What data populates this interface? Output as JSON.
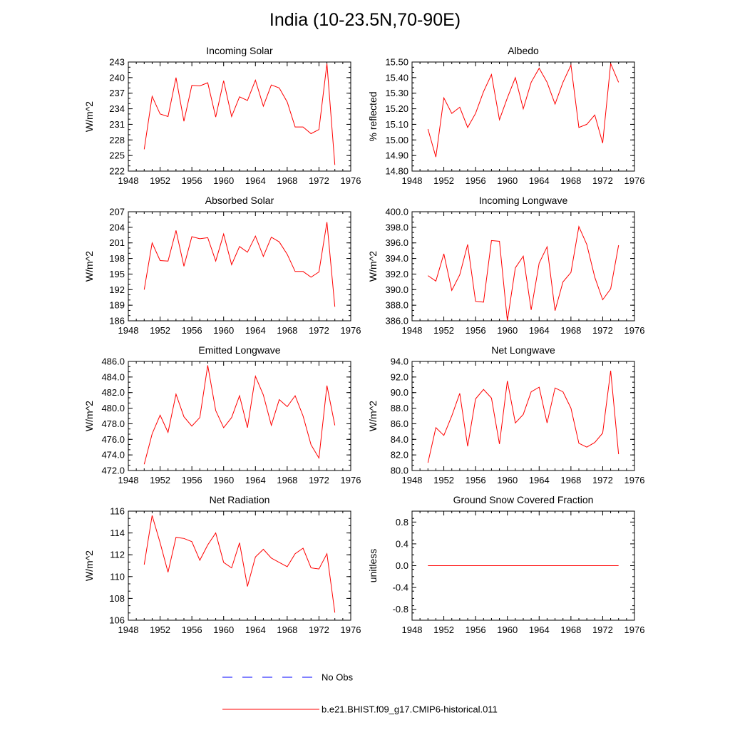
{
  "title": "India (10-23.5N,70-90E)",
  "colors": {
    "model": "#ff0000",
    "obs": "#0000ff",
    "axis": "#000000"
  },
  "legend": {
    "obs_label": "No Obs",
    "model_label": "b.e21.BHIST.f09_g17.CMIP6-historical.011"
  },
  "chart_data": [
    {
      "type": "line",
      "title": "Incoming Solar",
      "ylabel": "W/m^2",
      "xlim": [
        1948,
        1976
      ],
      "ylim": [
        222,
        243
      ],
      "xticks": [
        "1948",
        "1952",
        "1956",
        "1960",
        "1964",
        "1968",
        "1972",
        "1976"
      ],
      "yticks": [
        "222",
        "225",
        "228",
        "231",
        "234",
        "237",
        "240",
        "243"
      ],
      "x": [
        1950,
        1951,
        1952,
        1953,
        1954,
        1955,
        1956,
        1957,
        1958,
        1959,
        1960,
        1961,
        1962,
        1963,
        1964,
        1965,
        1966,
        1967,
        1968,
        1969,
        1970,
        1971,
        1972,
        1973,
        1974
      ],
      "series": [
        {
          "values": [
            226.2,
            236.4,
            233.0,
            232.5,
            240.0,
            231.6,
            238.5,
            238.4,
            239.0,
            232.4,
            239.4,
            232.5,
            236.3,
            235.6,
            239.5,
            234.5,
            238.6,
            238.0,
            235.3,
            230.5,
            230.5,
            229.2,
            230.0,
            242.7,
            223.2
          ]
        }
      ]
    },
    {
      "type": "line",
      "title": "Albedo",
      "ylabel": "% reflected",
      "xlim": [
        1948,
        1976
      ],
      "ylim": [
        14.8,
        15.5
      ],
      "xticks": [
        "1948",
        "1952",
        "1956",
        "1960",
        "1964",
        "1968",
        "1972",
        "1976"
      ],
      "yticks": [
        "14.80",
        "14.90",
        "15.00",
        "15.10",
        "15.20",
        "15.30",
        "15.40",
        "15.50"
      ],
      "x": [
        1950,
        1951,
        1952,
        1953,
        1954,
        1955,
        1956,
        1957,
        1958,
        1959,
        1960,
        1961,
        1962,
        1963,
        1964,
        1965,
        1966,
        1967,
        1968,
        1969,
        1970,
        1971,
        1972,
        1973,
        1974
      ],
      "series": [
        {
          "values": [
            15.07,
            14.89,
            15.27,
            15.17,
            15.21,
            15.08,
            15.17,
            15.31,
            15.42,
            15.13,
            15.27,
            15.4,
            15.2,
            15.37,
            15.46,
            15.37,
            15.23,
            15.37,
            15.48,
            15.08,
            15.1,
            15.16,
            14.98,
            15.49,
            15.37
          ]
        }
      ]
    },
    {
      "type": "line",
      "title": "Absorbed Solar",
      "ylabel": "W/m^2",
      "xlim": [
        1948,
        1976
      ],
      "ylim": [
        186,
        207
      ],
      "xticks": [
        "1948",
        "1952",
        "1956",
        "1960",
        "1964",
        "1968",
        "1972",
        "1976"
      ],
      "yticks": [
        "186",
        "189",
        "192",
        "195",
        "198",
        "201",
        "204",
        "207"
      ],
      "x": [
        1950,
        1951,
        1952,
        1953,
        1954,
        1955,
        1956,
        1957,
        1958,
        1959,
        1960,
        1961,
        1962,
        1963,
        1964,
        1965,
        1966,
        1967,
        1968,
        1969,
        1970,
        1971,
        1972,
        1973,
        1974
      ],
      "series": [
        {
          "values": [
            192.0,
            201.0,
            197.6,
            197.5,
            203.4,
            196.5,
            202.2,
            201.8,
            202.0,
            197.5,
            202.7,
            196.8,
            200.3,
            199.2,
            202.3,
            198.4,
            202.1,
            201.2,
            198.8,
            195.5,
            195.5,
            194.4,
            195.4,
            205.0,
            188.7
          ]
        }
      ]
    },
    {
      "type": "line",
      "title": "Incoming Longwave",
      "ylabel": "W/m^2",
      "xlim": [
        1948,
        1976
      ],
      "ylim": [
        386.0,
        400.0
      ],
      "xticks": [
        "1948",
        "1952",
        "1956",
        "1960",
        "1964",
        "1968",
        "1972",
        "1976"
      ],
      "yticks": [
        "386.0",
        "388.0",
        "390.0",
        "392.0",
        "394.0",
        "396.0",
        "398.0",
        "400.0"
      ],
      "x": [
        1950,
        1951,
        1952,
        1953,
        1954,
        1955,
        1956,
        1957,
        1958,
        1959,
        1960,
        1961,
        1962,
        1963,
        1964,
        1965,
        1966,
        1967,
        1968,
        1969,
        1970,
        1971,
        1972,
        1973,
        1974
      ],
      "series": [
        {
          "values": [
            391.8,
            391.1,
            394.6,
            389.9,
            391.9,
            395.8,
            388.5,
            388.4,
            396.3,
            396.2,
            386.0,
            392.8,
            394.3,
            387.4,
            393.4,
            395.5,
            387.3,
            391.0,
            392.2,
            398.1,
            395.8,
            391.6,
            388.7,
            390.1,
            395.7
          ]
        }
      ]
    },
    {
      "type": "line",
      "title": "Emitted Longwave",
      "ylabel": "W/m^2",
      "xlim": [
        1948,
        1976
      ],
      "ylim": [
        472.0,
        486.0
      ],
      "xticks": [
        "1948",
        "1952",
        "1956",
        "1960",
        "1964",
        "1968",
        "1972",
        "1976"
      ],
      "yticks": [
        "472.0",
        "474.0",
        "476.0",
        "478.0",
        "480.0",
        "482.0",
        "484.0",
        "486.0"
      ],
      "x": [
        1950,
        1951,
        1952,
        1953,
        1954,
        1955,
        1956,
        1957,
        1958,
        1959,
        1960,
        1961,
        1962,
        1963,
        1964,
        1965,
        1966,
        1967,
        1968,
        1969,
        1970,
        1971,
        1972,
        1973,
        1974
      ],
      "series": [
        {
          "values": [
            472.8,
            476.7,
            479.1,
            476.9,
            481.8,
            478.9,
            477.7,
            478.8,
            485.5,
            479.7,
            477.5,
            478.8,
            481.6,
            477.5,
            484.1,
            481.7,
            477.8,
            481.1,
            480.2,
            481.6,
            479.0,
            475.3,
            473.6,
            482.9,
            477.8
          ]
        }
      ]
    },
    {
      "type": "line",
      "title": "Net Longwave",
      "ylabel": "W/m^2",
      "xlim": [
        1948,
        1976
      ],
      "ylim": [
        80.0,
        94.0
      ],
      "xticks": [
        "1948",
        "1952",
        "1956",
        "1960",
        "1964",
        "1968",
        "1972",
        "1976"
      ],
      "yticks": [
        "80.0",
        "82.0",
        "84.0",
        "86.0",
        "88.0",
        "90.0",
        "92.0",
        "94.0"
      ],
      "x": [
        1950,
        1951,
        1952,
        1953,
        1954,
        1955,
        1956,
        1957,
        1958,
        1959,
        1960,
        1961,
        1962,
        1963,
        1964,
        1965,
        1966,
        1967,
        1968,
        1969,
        1970,
        1971,
        1972,
        1973,
        1974
      ],
      "series": [
        {
          "values": [
            81.0,
            85.5,
            84.5,
            87.0,
            89.9,
            83.1,
            89.2,
            90.4,
            89.3,
            83.4,
            91.5,
            86.1,
            87.2,
            90.1,
            90.7,
            86.1,
            90.6,
            90.1,
            88.0,
            83.5,
            83.0,
            83.6,
            84.8,
            92.8,
            82.1
          ]
        }
      ]
    },
    {
      "type": "line",
      "title": "Net Radiation",
      "ylabel": "W/m^2",
      "xlim": [
        1948,
        1976
      ],
      "ylim": [
        106,
        116
      ],
      "xticks": [
        "1948",
        "1952",
        "1956",
        "1960",
        "1964",
        "1968",
        "1972",
        "1976"
      ],
      "yticks": [
        "106",
        "108",
        "110",
        "112",
        "114",
        "116"
      ],
      "x": [
        1950,
        1951,
        1952,
        1953,
        1954,
        1955,
        1956,
        1957,
        1958,
        1959,
        1960,
        1961,
        1962,
        1963,
        1964,
        1965,
        1966,
        1967,
        1968,
        1969,
        1970,
        1971,
        1972,
        1973,
        1974
      ],
      "series": [
        {
          "values": [
            111.1,
            115.6,
            113.1,
            110.4,
            113.6,
            113.5,
            113.2,
            111.5,
            112.9,
            114.0,
            111.3,
            110.8,
            113.1,
            109.1,
            111.8,
            112.5,
            111.7,
            111.3,
            110.9,
            112.1,
            112.6,
            110.8,
            110.7,
            112.1,
            106.7
          ]
        }
      ]
    },
    {
      "type": "line",
      "title": "Ground Snow Covered Fraction",
      "ylabel": "unitless",
      "xlim": [
        1948,
        1976
      ],
      "ylim": [
        -1.0,
        1.0
      ],
      "xticks": [
        "1948",
        "1952",
        "1956",
        "1960",
        "1964",
        "1968",
        "1972",
        "1976"
      ],
      "yticks": [
        "-0.8",
        "-0.4",
        "0.0",
        "0.4",
        "0.8"
      ],
      "x": [
        1950,
        1951,
        1952,
        1953,
        1954,
        1955,
        1956,
        1957,
        1958,
        1959,
        1960,
        1961,
        1962,
        1963,
        1964,
        1965,
        1966,
        1967,
        1968,
        1969,
        1970,
        1971,
        1972,
        1973,
        1974
      ],
      "series": [
        {
          "values": [
            0,
            0,
            0,
            0,
            0,
            0,
            0,
            0,
            0,
            0,
            0,
            0,
            0,
            0,
            0,
            0,
            0,
            0,
            0,
            0,
            0,
            0,
            0,
            0,
            0
          ]
        }
      ]
    }
  ]
}
